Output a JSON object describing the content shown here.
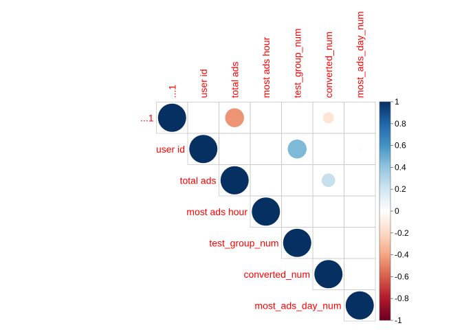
{
  "chart_data": {
    "type": "correlation-matrix",
    "layout": "upper-triangle",
    "shape": "circle",
    "variables": [
      "...1",
      "user id",
      "total ads",
      "most ads hour",
      "test_group_num",
      "converted_num",
      "most_ads_day_num"
    ],
    "matrix": [
      [
        1.0,
        0.01,
        -0.45,
        0.0,
        0.0,
        -0.15,
        0.0
      ],
      [
        null,
        1.0,
        0.0,
        0.01,
        0.45,
        0.0,
        0.02
      ],
      [
        null,
        null,
        1.0,
        0.0,
        0.0,
        0.23,
        0.0
      ],
      [
        null,
        null,
        null,
        1.0,
        0.0,
        0.01,
        0.0
      ],
      [
        null,
        null,
        null,
        null,
        1.0,
        0.0,
        0.0
      ],
      [
        null,
        null,
        null,
        null,
        null,
        1.0,
        0.01
      ],
      [
        null,
        null,
        null,
        null,
        null,
        null,
        1.0
      ]
    ],
    "colorbar": {
      "range": [
        -1,
        1
      ],
      "ticks": [
        "1",
        "0.8",
        "0.6",
        "0.4",
        "0.2",
        "0",
        "-0.2",
        "-0.4",
        "-0.6",
        "-0.8",
        "-1"
      ],
      "colors": [
        "#67001F",
        "#B2182B",
        "#D6604D",
        "#F4A582",
        "#FDDBC7",
        "#FFFFFF",
        "#D1E5F0",
        "#92C5DE",
        "#4393C3",
        "#2166AC",
        "#053061"
      ]
    },
    "label_color": "#FF0000",
    "grid_color": "#C8C8C8"
  }
}
